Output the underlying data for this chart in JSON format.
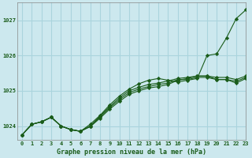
{
  "title": "Graphe pression niveau de la mer (hPa)",
  "bg_color": "#cce8ee",
  "grid_color": "#aad4dd",
  "line_color": "#1a5c1a",
  "xlim": [
    -0.5,
    23
  ],
  "ylim": [
    1023.6,
    1027.5
  ],
  "xticks": [
    0,
    1,
    2,
    3,
    4,
    5,
    6,
    7,
    8,
    9,
    10,
    11,
    12,
    13,
    14,
    15,
    16,
    17,
    18,
    19,
    20,
    21,
    22,
    23
  ],
  "yticks": [
    1024,
    1025,
    1026,
    1027
  ],
  "series": [
    [
      1023.75,
      1024.05,
      1024.12,
      1024.25,
      1024.0,
      1023.9,
      1023.85,
      1024.05,
      1024.3,
      1024.6,
      1024.85,
      1025.05,
      1025.2,
      1025.3,
      1025.35,
      1025.3,
      1025.25,
      1025.3,
      1025.35,
      1026.0,
      1026.05,
      1026.5,
      1027.05,
      1027.3
    ],
    [
      1023.75,
      1024.05,
      1024.12,
      1024.25,
      1024.0,
      1023.9,
      1023.85,
      1024.0,
      1024.28,
      1024.55,
      1024.8,
      1025.0,
      1025.1,
      1025.18,
      1025.22,
      1025.28,
      1025.35,
      1025.38,
      1025.42,
      1025.42,
      1025.38,
      1025.38,
      1025.32,
      1025.42
    ],
    [
      1023.75,
      1024.05,
      1024.12,
      1024.25,
      1024.0,
      1023.9,
      1023.85,
      1024.0,
      1024.25,
      1024.52,
      1024.75,
      1024.95,
      1025.05,
      1025.12,
      1025.18,
      1025.22,
      1025.32,
      1025.32,
      1025.38,
      1025.38,
      1025.32,
      1025.32,
      1025.27,
      1025.38
    ],
    [
      1023.75,
      1024.05,
      1024.12,
      1024.25,
      1024.0,
      1023.9,
      1023.85,
      1023.98,
      1024.22,
      1024.48,
      1024.7,
      1024.9,
      1025.0,
      1025.08,
      1025.12,
      1025.18,
      1025.3,
      1025.35,
      1025.42,
      1025.42,
      1025.32,
      1025.32,
      1025.22,
      1025.35
    ]
  ]
}
